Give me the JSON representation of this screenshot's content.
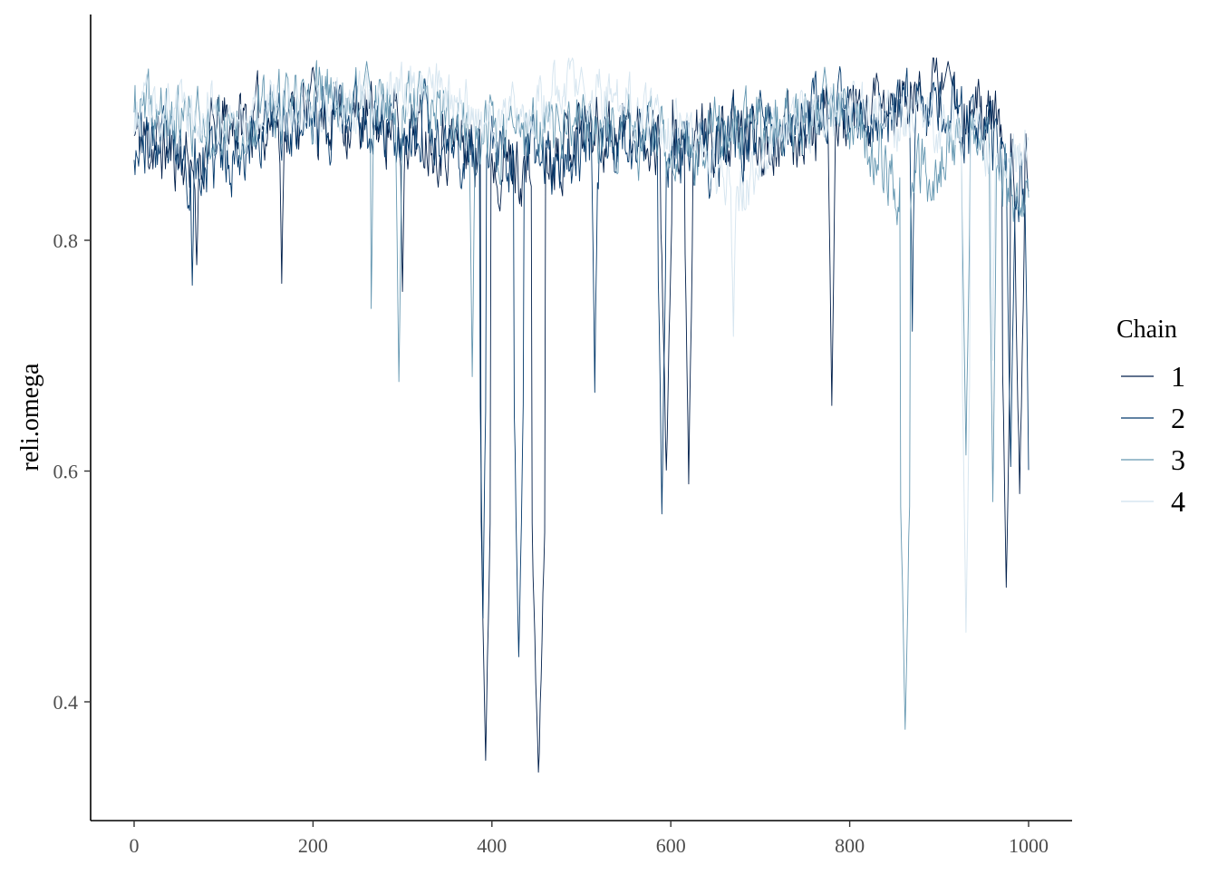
{
  "chart_data": {
    "type": "line",
    "title": "",
    "xlabel": "",
    "ylabel": "reli.omega",
    "xlim": [
      -50,
      1050
    ],
    "ylim": [
      0.3,
      0.99
    ],
    "x_ticks": [
      0,
      200,
      400,
      600,
      800,
      1000
    ],
    "x_tick_labels": [
      "0",
      "200",
      "400",
      "600",
      "800",
      "1000"
    ],
    "y_ticks": [
      0.4,
      0.6,
      0.8
    ],
    "y_tick_labels": [
      "0.4",
      "0.6",
      "0.8"
    ],
    "grid": false,
    "legend": {
      "title": "Chain",
      "position": "right",
      "entries": [
        "1",
        "2",
        "3",
        "4"
      ]
    },
    "n_iterations": 1000,
    "series": [
      {
        "name": "1",
        "color": "#011f4b",
        "width": 0.9,
        "seed": 11,
        "base": [
          [
            0,
            0.89
          ],
          [
            60,
            0.87
          ],
          [
            100,
            0.9
          ],
          [
            200,
            0.91
          ],
          [
            300,
            0.9
          ],
          [
            380,
            0.88
          ],
          [
            440,
            0.86
          ],
          [
            500,
            0.9
          ],
          [
            600,
            0.89
          ],
          [
            700,
            0.89
          ],
          [
            800,
            0.9
          ],
          [
            900,
            0.93
          ],
          [
            960,
            0.9
          ],
          [
            1000,
            0.86
          ]
        ],
        "noise": 0.025,
        "dips": [
          [
            70,
            0.77,
            6
          ],
          [
            165,
            0.76,
            4
          ],
          [
            300,
            0.76,
            4
          ],
          [
            393,
            0.35,
            5
          ],
          [
            452,
            0.33,
            7
          ],
          [
            595,
            0.6,
            6
          ],
          [
            620,
            0.59,
            4
          ],
          [
            780,
            0.65,
            3
          ],
          [
            975,
            0.49,
            4
          ],
          [
            990,
            0.58,
            5
          ]
        ],
        "peaks": [
          [
            910,
            0.955,
            6
          ],
          [
            200,
            0.95,
            4
          ]
        ]
      },
      {
        "name": "2",
        "color": "#03396c",
        "width": 0.9,
        "seed": 23,
        "base": [
          [
            0,
            0.89
          ],
          [
            80,
            0.86
          ],
          [
            150,
            0.9
          ],
          [
            250,
            0.91
          ],
          [
            350,
            0.88
          ],
          [
            420,
            0.87
          ],
          [
            500,
            0.88
          ],
          [
            560,
            0.89
          ],
          [
            640,
            0.87
          ],
          [
            720,
            0.9
          ],
          [
            820,
            0.91
          ],
          [
            900,
            0.92
          ],
          [
            960,
            0.88
          ],
          [
            1000,
            0.84
          ]
        ],
        "noise": 0.025,
        "dips": [
          [
            65,
            0.76,
            4
          ],
          [
            390,
            0.47,
            3
          ],
          [
            430,
            0.44,
            5
          ],
          [
            515,
            0.67,
            3
          ],
          [
            590,
            0.57,
            4
          ],
          [
            870,
            0.73,
            3
          ],
          [
            980,
            0.6,
            4
          ],
          [
            1000,
            0.6,
            3
          ]
        ],
        "peaks": [
          [
            325,
            0.94,
            3
          ],
          [
            700,
            0.93,
            3
          ]
        ]
      },
      {
        "name": "3",
        "color": "#6497b1",
        "width": 0.9,
        "seed": 37,
        "base": [
          [
            0,
            0.91
          ],
          [
            100,
            0.9
          ],
          [
            200,
            0.92
          ],
          [
            260,
            0.93
          ],
          [
            350,
            0.9
          ],
          [
            430,
            0.89
          ],
          [
            520,
            0.9
          ],
          [
            600,
            0.88
          ],
          [
            700,
            0.9
          ],
          [
            800,
            0.91
          ],
          [
            860,
            0.84
          ],
          [
            940,
            0.9
          ],
          [
            1000,
            0.82
          ]
        ],
        "noise": 0.024,
        "dips": [
          [
            265,
            0.74,
            3
          ],
          [
            296,
            0.67,
            3
          ],
          [
            378,
            0.68,
            3
          ],
          [
            862,
            0.37,
            5
          ],
          [
            930,
            0.61,
            4
          ],
          [
            960,
            0.57,
            3
          ]
        ],
        "peaks": [
          [
            260,
            0.955,
            4
          ],
          [
            772,
            0.95,
            3
          ]
        ]
      },
      {
        "name": "4",
        "color": "#d7e6f0",
        "width": 1.0,
        "seed": 53,
        "base": [
          [
            0,
            0.91
          ],
          [
            100,
            0.91
          ],
          [
            250,
            0.92
          ],
          [
            330,
            0.93
          ],
          [
            400,
            0.9
          ],
          [
            480,
            0.93
          ],
          [
            550,
            0.92
          ],
          [
            620,
            0.89
          ],
          [
            680,
            0.84
          ],
          [
            720,
            0.9
          ],
          [
            800,
            0.91
          ],
          [
            900,
            0.9
          ],
          [
            960,
            0.88
          ],
          [
            1000,
            0.87
          ]
        ],
        "noise": 0.02,
        "dips": [
          [
            670,
            0.72,
            5
          ],
          [
            930,
            0.47,
            4
          ],
          [
            960,
            0.7,
            3
          ]
        ],
        "peaks": [
          [
            330,
            0.95,
            4
          ],
          [
            500,
            0.95,
            4
          ]
        ]
      }
    ]
  }
}
